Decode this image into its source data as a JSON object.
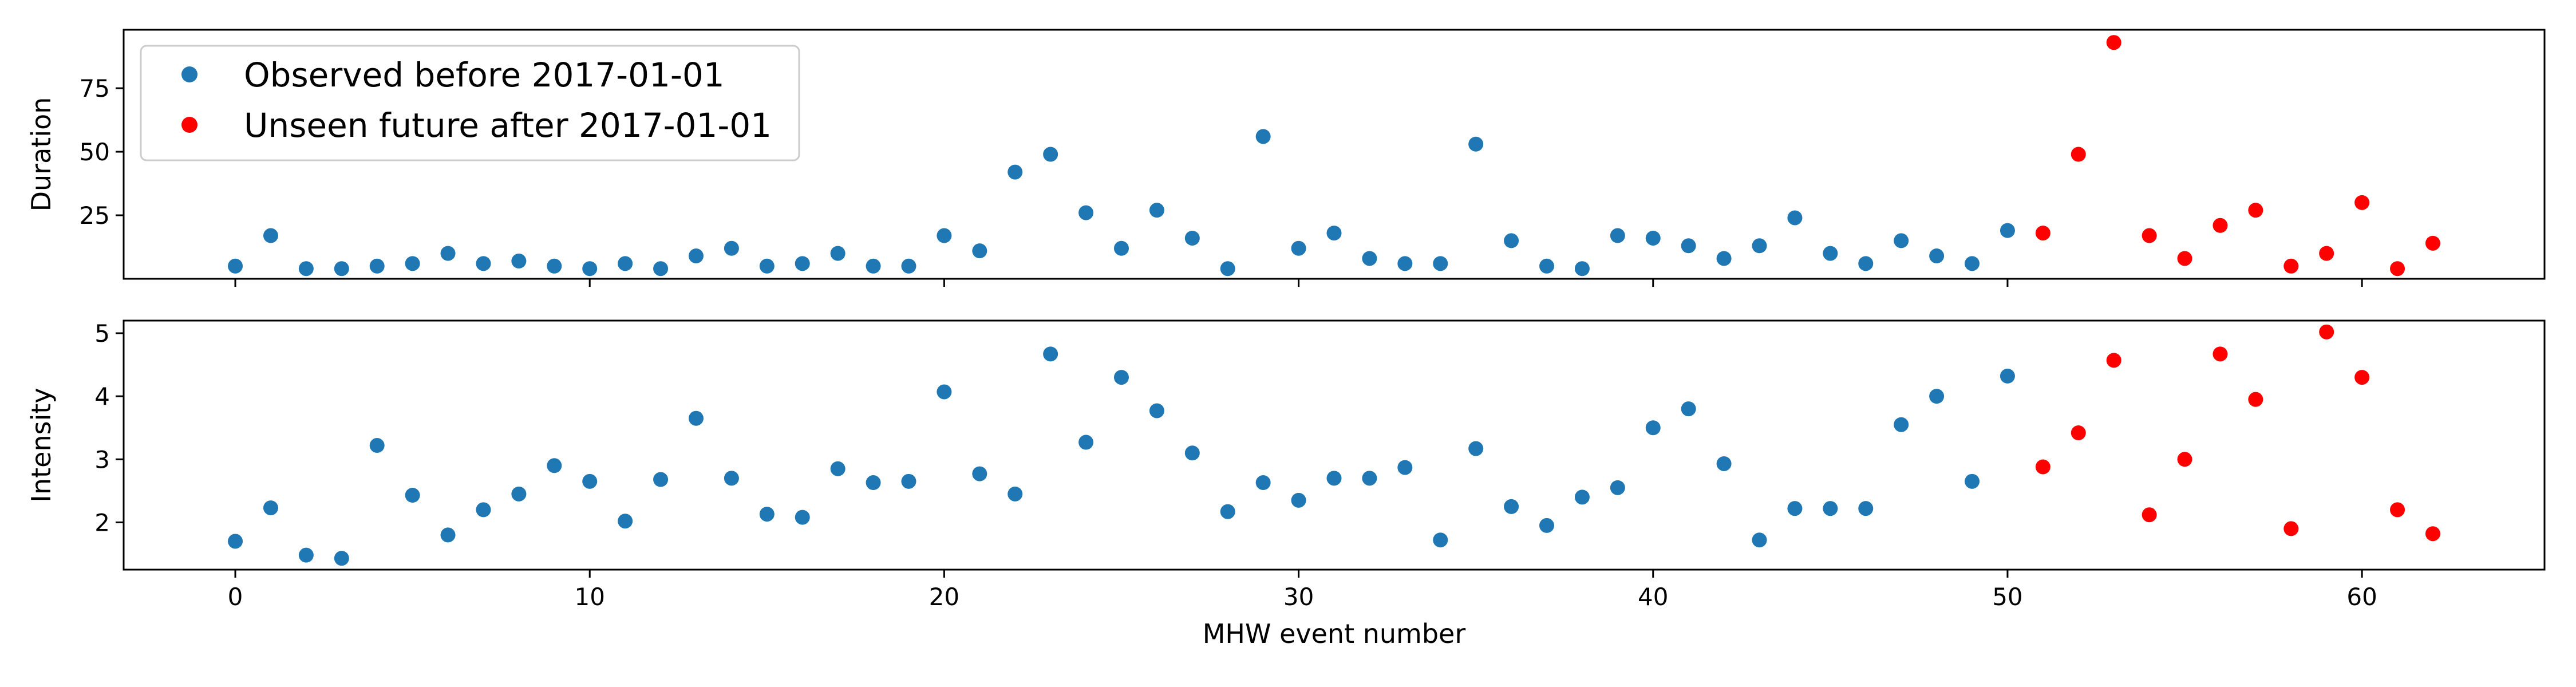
{
  "chart_data": [
    {
      "type": "scatter",
      "title": "",
      "xlabel": "",
      "ylabel": "Duration",
      "xlim": [
        -3.15,
        65.15
      ],
      "ylim": [
        0,
        98
      ],
      "yticks": [
        25,
        50,
        75
      ],
      "show_xtick_labels": false,
      "grid": false,
      "legend": {
        "placement": "top-left",
        "entries": [
          {
            "label": "Observed before 2017-01-01",
            "color": "#1f77b4"
          },
          {
            "label": "Unseen future after 2017-01-01",
            "color": "#ff0000"
          }
        ]
      },
      "series": [
        {
          "name": "Observed before 2017-01-01",
          "color": "#1f77b4",
          "x": [
            0,
            1,
            2,
            3,
            4,
            5,
            6,
            7,
            8,
            9,
            10,
            11,
            12,
            13,
            14,
            15,
            16,
            17,
            18,
            19,
            20,
            21,
            22,
            23,
            24,
            25,
            26,
            27,
            28,
            29,
            30,
            31,
            32,
            33,
            34,
            35,
            36,
            37,
            38,
            39,
            40,
            41,
            42,
            43,
            44,
            45,
            46,
            47,
            48,
            49,
            50
          ],
          "y": [
            5,
            17,
            4,
            4,
            5,
            6,
            10,
            6,
            7,
            5,
            4,
            6,
            4,
            9,
            12,
            5,
            6,
            10,
            5,
            5,
            17,
            11,
            42,
            49,
            26,
            12,
            27,
            16,
            4,
            56,
            12,
            18,
            8,
            6,
            6,
            53,
            15,
            5,
            4,
            17,
            16,
            13,
            8,
            13,
            24,
            10,
            6,
            15,
            9,
            6,
            19
          ]
        },
        {
          "name": "Unseen future after 2017-01-01",
          "color": "#ff0000",
          "x": [
            51,
            52,
            53,
            54,
            55,
            56,
            57,
            58,
            59,
            60,
            61,
            62
          ],
          "y": [
            18,
            49,
            93,
            17,
            8,
            21,
            27,
            5,
            10,
            30,
            4,
            14
          ]
        }
      ]
    },
    {
      "type": "scatter",
      "title": "",
      "xlabel": "MHW event number",
      "ylabel": "Intensity",
      "xlim": [
        -3.15,
        65.15
      ],
      "ylim": [
        1.25,
        5.2
      ],
      "xticks": [
        0,
        10,
        20,
        30,
        40,
        50,
        60
      ],
      "yticks": [
        2,
        3,
        4,
        5
      ],
      "grid": false,
      "series": [
        {
          "name": "Observed before 2017-01-01",
          "color": "#1f77b4",
          "x": [
            0,
            1,
            2,
            3,
            4,
            5,
            6,
            7,
            8,
            9,
            10,
            11,
            12,
            13,
            14,
            15,
            16,
            17,
            18,
            19,
            20,
            21,
            22,
            23,
            24,
            25,
            26,
            27,
            28,
            29,
            30,
            31,
            32,
            33,
            34,
            35,
            36,
            37,
            38,
            39,
            40,
            41,
            42,
            43,
            44,
            45,
            46,
            47,
            48,
            49,
            50
          ],
          "y": [
            1.7,
            2.23,
            1.48,
            1.43,
            3.22,
            2.43,
            1.8,
            2.2,
            2.45,
            2.9,
            2.65,
            2.02,
            2.68,
            3.65,
            2.7,
            2.13,
            2.08,
            2.85,
            2.63,
            2.65,
            4.07,
            2.77,
            2.45,
            4.67,
            3.27,
            4.3,
            3.77,
            3.1,
            2.17,
            2.63,
            2.35,
            2.7,
            2.7,
            2.87,
            1.72,
            3.17,
            2.25,
            1.95,
            2.4,
            2.55,
            3.5,
            3.8,
            2.93,
            1.72,
            2.22,
            2.22,
            2.22,
            3.55,
            4.0,
            2.65,
            4.32
          ]
        },
        {
          "name": "Unseen future after 2017-01-01",
          "color": "#ff0000",
          "x": [
            51,
            52,
            53,
            54,
            55,
            56,
            57,
            58,
            59,
            60,
            61,
            62
          ],
          "y": [
            2.88,
            3.42,
            4.57,
            2.12,
            3.0,
            4.67,
            3.95,
            1.9,
            5.02,
            4.3,
            2.2,
            1.82
          ]
        }
      ]
    }
  ]
}
